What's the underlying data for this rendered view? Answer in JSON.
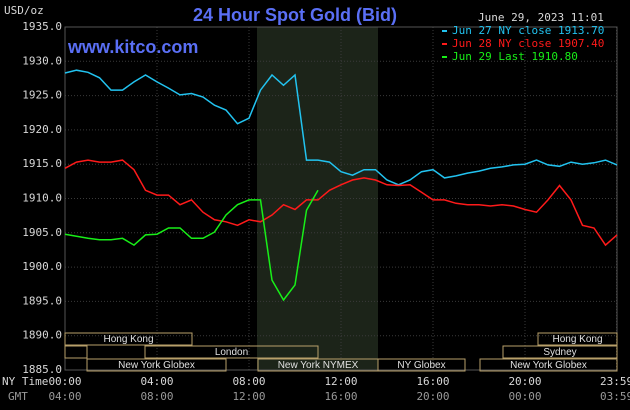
{
  "chart_data": {
    "type": "line",
    "title": "24 Hour Spot Gold (Bid)",
    "y_label": "USD/oz",
    "watermark": "www.kitco.com",
    "timestamp": "June 29, 2023 11:01",
    "x_label": "NY Time",
    "x2_label": "GMT",
    "x": [
      0,
      0.5,
      1,
      1.5,
      2,
      2.5,
      3,
      3.5,
      4,
      4.5,
      5,
      5.5,
      6,
      6.5,
      7,
      7.5,
      8,
      8.5,
      9,
      9.5,
      10,
      10.5,
      11,
      11.5,
      12,
      12.5,
      13,
      13.5,
      14,
      14.5,
      15,
      15.5,
      16,
      16.5,
      17,
      17.5,
      18,
      18.5,
      19,
      19.5,
      20,
      20.5,
      21,
      21.5,
      22,
      22.5,
      23,
      23.5,
      24
    ],
    "xlim": [
      0,
      24
    ],
    "xticks": [
      {
        "value": 0,
        "label": "00:00"
      },
      {
        "value": 4,
        "label": "04:00"
      },
      {
        "value": 8,
        "label": "08:00"
      },
      {
        "value": 12,
        "label": "12:00"
      },
      {
        "value": 16,
        "label": "16:00"
      },
      {
        "value": 20,
        "label": "20:00"
      },
      {
        "value": 23.98,
        "label": "23:59"
      }
    ],
    "x2ticks": [
      {
        "value": 0,
        "label": "04:00"
      },
      {
        "value": 4,
        "label": "08:00"
      },
      {
        "value": 8,
        "label": "12:00"
      },
      {
        "value": 12,
        "label": "16:00"
      },
      {
        "value": 16,
        "label": "20:00"
      },
      {
        "value": 20,
        "label": "00:00"
      },
      {
        "value": 23.98,
        "label": "03:59"
      }
    ],
    "ylim": [
      1885,
      1935
    ],
    "yticks": [
      {
        "value": 1885,
        "label": "1885.0"
      },
      {
        "value": 1890,
        "label": "1890.0"
      },
      {
        "value": 1895,
        "label": "1895.0"
      },
      {
        "value": 1900,
        "label": "1900.0"
      },
      {
        "value": 1905,
        "label": "1905.0"
      },
      {
        "value": 1910,
        "label": "1910.0"
      },
      {
        "value": 1915,
        "label": "1915.0"
      },
      {
        "value": 1920,
        "label": "1920.0"
      },
      {
        "value": 1925,
        "label": "1925.0"
      },
      {
        "value": 1930,
        "label": "1930.0"
      },
      {
        "value": 1935,
        "label": "1935.0"
      }
    ],
    "grid": true,
    "legend": "top-right",
    "series": [
      {
        "name": "Jun 27 NY close 1913.70",
        "color": "#22c3f0",
        "values": [
          1928.3,
          1928.7,
          1928.4,
          1927.6,
          1925.8,
          1925.8,
          1927.0,
          1928.0,
          1927.0,
          1926.1,
          1925.1,
          1925.3,
          1924.8,
          1923.6,
          1922.9,
          1920.9,
          1921.7,
          1925.8,
          1928.0,
          1926.5,
          1928.0,
          1915.6,
          1915.6,
          1915.3,
          1913.9,
          1913.4,
          1914.2,
          1914.2,
          1912.7,
          1912.0,
          1912.7,
          1913.9,
          1914.2,
          1913.0,
          1913.3,
          1913.7,
          1914.0,
          1914.4,
          1914.6,
          1914.9,
          1915.0,
          1915.6,
          1914.9,
          1914.7,
          1915.3,
          1915.0,
          1915.2,
          1915.6,
          1914.9
        ]
      },
      {
        "name": "Jun 28 NY close 1907.40",
        "color": "#ff1a1a",
        "values": [
          1914.4,
          1915.3,
          1915.6,
          1915.3,
          1915.3,
          1915.6,
          1914.2,
          1911.2,
          1910.5,
          1910.5,
          1909.1,
          1909.8,
          1908.0,
          1906.9,
          1906.6,
          1906.1,
          1906.9,
          1906.6,
          1907.6,
          1909.1,
          1908.4,
          1909.8,
          1909.8,
          1911.2,
          1912.0,
          1912.7,
          1913.0,
          1912.7,
          1912.0,
          1911.9,
          1912.0,
          1910.9,
          1909.8,
          1909.8,
          1909.3,
          1909.1,
          1909.1,
          1908.9,
          1909.1,
          1908.9,
          1908.4,
          1908.0,
          1909.8,
          1911.9,
          1909.8,
          1906.1,
          1905.7,
          1903.2,
          1904.7
        ]
      },
      {
        "name": "Jun 29 Last 1910.80",
        "color": "#18ee18",
        "values": [
          1904.8,
          1904.5,
          1904.2,
          1904.0,
          1904.0,
          1904.2,
          1903.2,
          1904.7,
          1904.8,
          1905.7,
          1905.7,
          1904.2,
          1904.2,
          1905.1,
          1907.6,
          1909.1,
          1909.8,
          1909.8,
          1898.1,
          1895.2,
          1897.4,
          1908.3,
          1911.2,
          null,
          null,
          null,
          null,
          null,
          null,
          null,
          null,
          null,
          null,
          null,
          null,
          null,
          null,
          null,
          null,
          null,
          null,
          null,
          null,
          null,
          null,
          null,
          null,
          null,
          null
        ]
      }
    ],
    "sessions": [
      "Hong Kong",
      "Hong Kong",
      "London",
      "Sydney",
      "New York Globex",
      "New York NYMEX",
      "NY Globex",
      "New York Globex"
    ]
  }
}
